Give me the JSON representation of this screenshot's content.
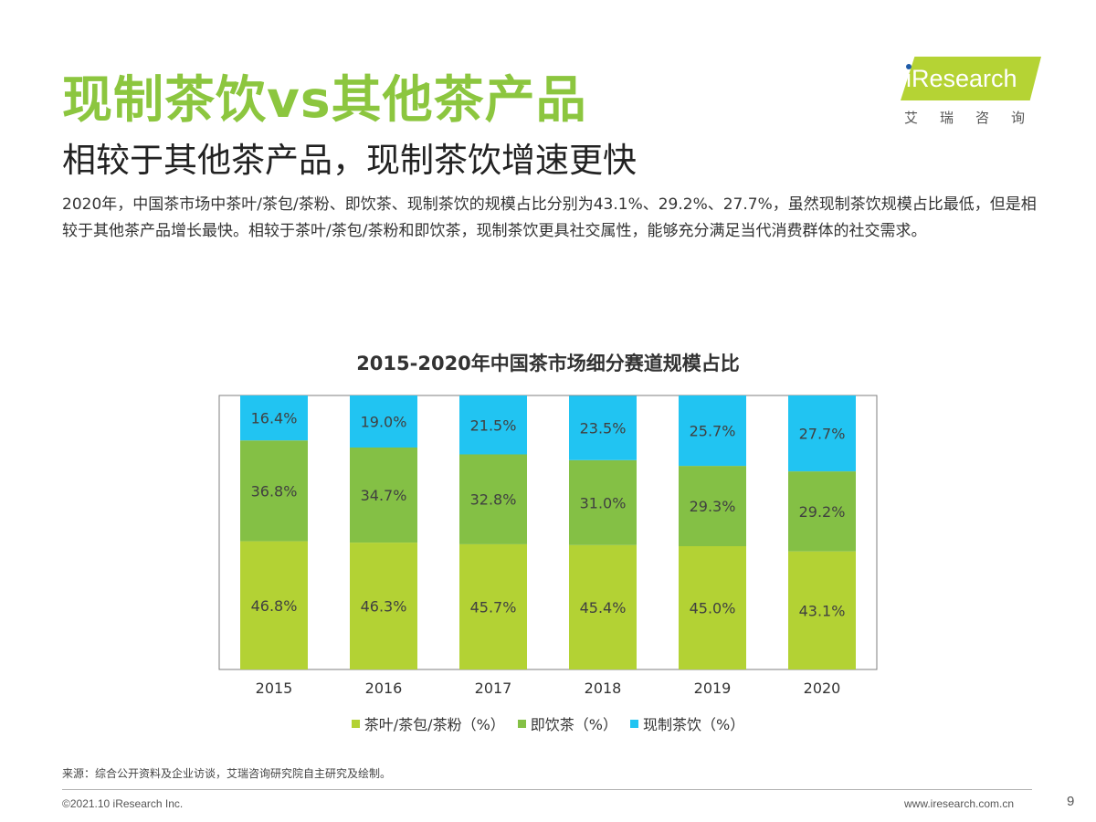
{
  "header": {
    "title": "现制茶饮vs其他茶产品",
    "subtitle": "相较于其他茶产品，现制茶饮增速更快",
    "description": "2020年，中国茶市场中茶叶/茶包/茶粉、即饮茶、现制茶饮的规模占比分别为43.1%、29.2%、27.7%，虽然现制茶饮规模占比最低，但是相较于其他茶产品增长最快。相较于茶叶/茶包/茶粉和即饮茶，现制茶饮更具社交属性，能够充分满足当代消费群体的社交需求。"
  },
  "logo": {
    "text": "iResearch",
    "subtext": "艾瑞咨询",
    "color": "#b5d334"
  },
  "chart_data": {
    "type": "bar",
    "stacked": true,
    "title": "2015-2020年中国茶市场细分赛道规模占比",
    "categories": [
      "2015",
      "2016",
      "2017",
      "2018",
      "2019",
      "2020"
    ],
    "series": [
      {
        "name": "茶叶/茶包/茶粉（%）",
        "values": [
          46.8,
          46.3,
          45.7,
          45.4,
          45.0,
          43.1
        ],
        "labels": [
          "46.8%",
          "46.3%",
          "45.7%",
          "45.4%",
          "45.0%",
          "43.1%"
        ],
        "color": "#b3d234"
      },
      {
        "name": "即饮茶（%）",
        "values": [
          36.8,
          34.7,
          32.8,
          31.0,
          29.3,
          29.2
        ],
        "labels": [
          "36.8%",
          "34.7%",
          "32.8%",
          "31.0%",
          "29.3%",
          "29.2%"
        ],
        "color": "#84c045"
      },
      {
        "name": "现制茶饮（%）",
        "values": [
          16.4,
          19.0,
          21.5,
          23.5,
          25.7,
          27.7
        ],
        "labels": [
          "16.4%",
          "19.0%",
          "21.5%",
          "23.5%",
          "25.7%",
          "27.7%"
        ],
        "color": "#21c4f2"
      }
    ],
    "ylim": [
      0,
      100
    ],
    "grid": false,
    "legend": "bottom"
  },
  "footer": {
    "source": "来源：综合公开资料及企业访谈，艾瑞咨询研究院自主研究及绘制。",
    "copyright": "©2021.10 iResearch Inc.",
    "website": "www.iresearch.com.cn",
    "page": "9"
  }
}
